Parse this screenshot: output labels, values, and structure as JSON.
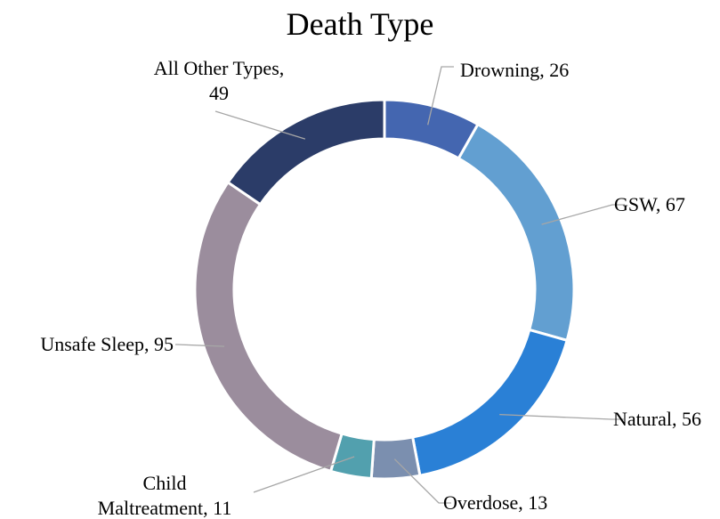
{
  "chart_data": {
    "type": "pie",
    "variant": "donut",
    "title": "Death Type",
    "categories": [
      "Drowning",
      "GSW",
      "Natural",
      "Overdose",
      "Child Maltreatment",
      "Unsafe Sleep",
      "All Other Types"
    ],
    "values": [
      26,
      67,
      56,
      13,
      11,
      95,
      49
    ],
    "colors": [
      "#4466B0",
      "#629FD1",
      "#2A80D6",
      "#7B8FAF",
      "#52A0AE",
      "#9B8D9D",
      "#2B3C68"
    ],
    "labels": [
      {
        "lines": [
          "Drowning, 26"
        ]
      },
      {
        "lines": [
          "GSW, 67"
        ]
      },
      {
        "lines": [
          "Natural, 56"
        ]
      },
      {
        "lines": [
          "Overdose, 13"
        ]
      },
      {
        "lines": [
          "Child",
          "Maltreatment, 11"
        ]
      },
      {
        "lines": [
          "Unsafe Sleep, 95"
        ]
      },
      {
        "lines": [
          "All Other Types,",
          "49"
        ]
      }
    ],
    "legend": "none",
    "data_labels": "outside with leader lines"
  }
}
